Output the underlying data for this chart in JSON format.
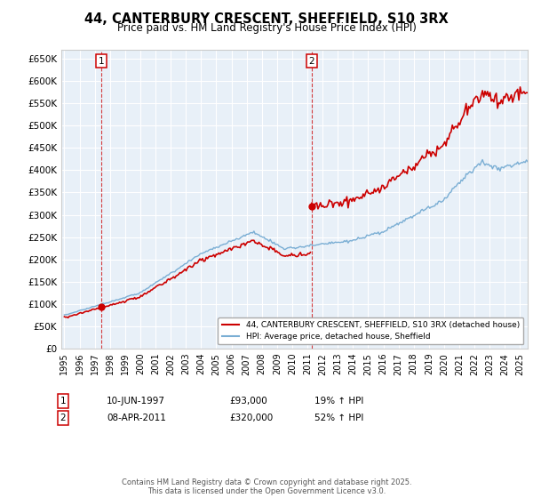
{
  "title": "44, CANTERBURY CRESCENT, SHEFFIELD, S10 3RX",
  "subtitle": "Price paid vs. HM Land Registry's House Price Index (HPI)",
  "ylim": [
    0,
    670000
  ],
  "yticks": [
    0,
    50000,
    100000,
    150000,
    200000,
    250000,
    300000,
    350000,
    400000,
    450000,
    500000,
    550000,
    600000,
    650000
  ],
  "xlim_start": 1994.8,
  "xlim_end": 2025.5,
  "xticks": [
    1995,
    1996,
    1997,
    1998,
    1999,
    2000,
    2001,
    2002,
    2003,
    2004,
    2005,
    2006,
    2007,
    2008,
    2009,
    2010,
    2011,
    2012,
    2013,
    2014,
    2015,
    2016,
    2017,
    2018,
    2019,
    2020,
    2021,
    2022,
    2023,
    2024,
    2025
  ],
  "sale1_x": 1997.44,
  "sale1_y": 93000,
  "sale2_x": 2011.27,
  "sale2_y": 320000,
  "red_color": "#cc0000",
  "blue_color": "#7aaed4",
  "plot_bg": "#e8f0f8",
  "grid_color": "#ffffff",
  "legend_label_red": "44, CANTERBURY CRESCENT, SHEFFIELD, S10 3RX (detached house)",
  "legend_label_blue": "HPI: Average price, detached house, Sheffield",
  "footer": "Contains HM Land Registry data © Crown copyright and database right 2025.\nThis data is licensed under the Open Government Licence v3.0.",
  "sale1_date": "10-JUN-1997",
  "sale1_price": "£93,000",
  "sale1_hpi": "19% ↑ HPI",
  "sale2_date": "08-APR-2011",
  "sale2_price": "£320,000",
  "sale2_hpi": "52% ↑ HPI"
}
